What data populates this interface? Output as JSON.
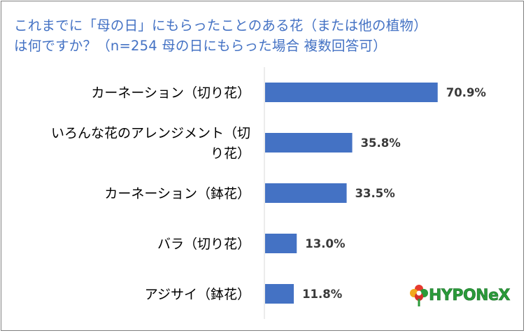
{
  "chart_data": {
    "type": "bar",
    "orientation": "horizontal",
    "title_lines": [
      "これまでに「母の日」にもらったことのある花（または他の植物）",
      "は何ですか？（n=254 母の日にもらった場合 複数回答可）"
    ],
    "categories": [
      [
        "カーネーション（切り花）"
      ],
      [
        "いろんな花のアレンジメント（切",
        "り花）"
      ],
      [
        "カーネーション（鉢花）"
      ],
      [
        "バラ（切り花）"
      ],
      [
        "アジサイ（鉢花）"
      ]
    ],
    "values": [
      70.9,
      35.8,
      33.5,
      13.0,
      11.8
    ],
    "value_labels": [
      "70.9%",
      "35.8%",
      "33.5%",
      "13.0%",
      "11.8%"
    ],
    "xlim": [
      0,
      100
    ],
    "bar_color": "#4472c4",
    "grid": false,
    "legend": "none"
  },
  "logo": {
    "text": "HYPONeX"
  }
}
